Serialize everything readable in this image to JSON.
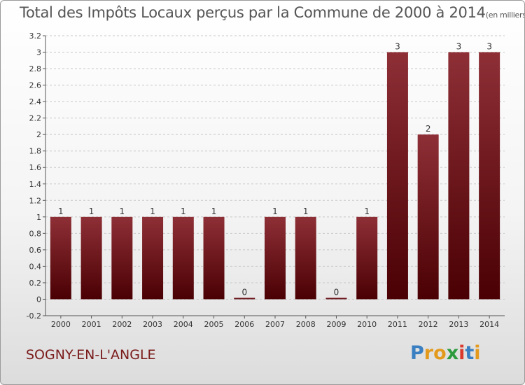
{
  "title": "Total des Impôts Locaux perçus par la Commune de 2000 à 2014",
  "unit": "(en milliers d'€)",
  "commune": "SOGNY-EN-L'ANGLE",
  "logo": {
    "text": "Proxiti",
    "letters": [
      "P",
      "r",
      "o",
      "x",
      "i",
      "t",
      "i"
    ],
    "colors": [
      "#3a7fc1",
      "#e39a1c",
      "#e39a1c",
      "#2c9a3d",
      "#d93a2b",
      "#3a7fc1",
      "#e39a1c"
    ]
  },
  "colors": {
    "bar_top": "#8e2f36",
    "bar_bottom": "#4a0003",
    "commune_text": "#7a1a1a"
  },
  "chart_data": {
    "type": "bar",
    "title": "Total des Impôts Locaux perçus par la Commune de 2000 à 2014",
    "categories": [
      "2000",
      "2001",
      "2002",
      "2003",
      "2004",
      "2005",
      "2006",
      "2007",
      "2008",
      "2009",
      "2010",
      "2011",
      "2012",
      "2013",
      "2014"
    ],
    "values": [
      1,
      1,
      1,
      1,
      1,
      1,
      0,
      1,
      1,
      0,
      1,
      3,
      2,
      3,
      3
    ],
    "value_labels": [
      "1",
      "1",
      "1",
      "1",
      "1",
      "1",
      "0",
      "1",
      "1",
      "0",
      "1",
      "3",
      "2",
      "3",
      "3"
    ],
    "ylim": [
      -0.2,
      3.2
    ],
    "yticks": [
      -0.2,
      0,
      0.2,
      0.4,
      0.6,
      0.8,
      1,
      1.2,
      1.4,
      1.6,
      1.8,
      2,
      2.2,
      2.4,
      2.6,
      2.8,
      3,
      3.2
    ],
    "ytick_labels": [
      "-0.2",
      "0",
      "0.2",
      "0.4",
      "0.6",
      "0.8",
      "1",
      "1.2",
      "1.4",
      "1.6",
      "1.8",
      "2",
      "2.2",
      "2.4",
      "2.6",
      "2.8",
      "3",
      "3.2"
    ],
    "grid": "horizontal-dashed",
    "legend": "none"
  }
}
